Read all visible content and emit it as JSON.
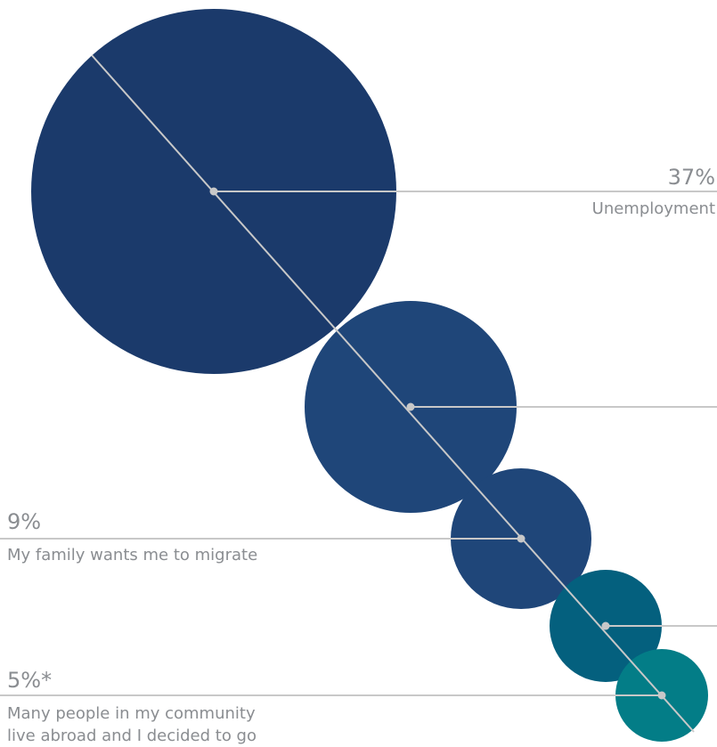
{
  "chart_data": {
    "type": "bubble",
    "title": "",
    "series": [
      {
        "value": 37,
        "value_label": "37%",
        "label": "Unemployment",
        "color": "#1b3a6b",
        "label_lines": [
          "Unemployment"
        ]
      },
      {
        "value": 16,
        "value_label": "",
        "label": "",
        "color": "#1f4679",
        "label_lines": []
      },
      {
        "value": 9,
        "value_label": "9%",
        "label": "My family wants me to migrate",
        "color": "#1f4679",
        "label_lines": [
          "My family wants me to migrate"
        ]
      },
      {
        "value": 6,
        "value_label": "",
        "label": "",
        "color": "#04607e",
        "label_lines": []
      },
      {
        "value": 5,
        "value_label": "5%*",
        "label": "Many people in my community live abroad and I decided to go",
        "color": "#037d87",
        "label_lines": [
          "Many people in my community",
          "live abroad and I decided to go"
        ]
      }
    ],
    "connector_color": "#c8c8c8",
    "label_color": "#8a8d91"
  }
}
